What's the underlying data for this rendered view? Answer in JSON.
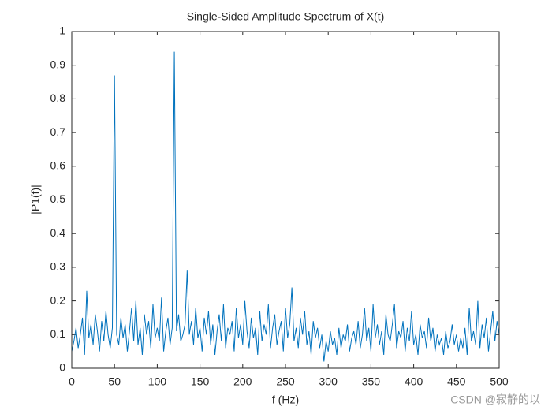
{
  "chart_data": {
    "type": "line",
    "title": "Single-Sided Amplitude Spectrum of X(t)",
    "x_label": "f (Hz)",
    "y_label": "|P1(f)|",
    "watermark": "CSDN @寂静的以",
    "xlim": [
      0,
      500
    ],
    "xticks": [
      0,
      50,
      100,
      150,
      200,
      250,
      300,
      350,
      400,
      450,
      500
    ],
    "ylim": [
      0,
      1
    ],
    "yticks": [
      0,
      0.1,
      0.2,
      0.3,
      0.4,
      0.5,
      0.6,
      0.7,
      0.8,
      0.9,
      1
    ],
    "x": [
      0,
      2.5,
      5,
      7.5,
      10,
      12.5,
      15,
      17.5,
      20,
      22.5,
      25,
      27.5,
      30,
      32.5,
      35,
      37.5,
      40,
      42.5,
      45,
      47.5,
      50,
      52.5,
      55,
      57.5,
      60,
      62.5,
      65,
      67.5,
      70,
      72.5,
      75,
      77.5,
      80,
      82.5,
      85,
      87.5,
      90,
      92.5,
      95,
      97.5,
      100,
      102.5,
      105,
      107.5,
      110,
      112.5,
      115,
      117.5,
      120,
      122.5,
      125,
      127.5,
      130,
      132.5,
      135,
      137.5,
      140,
      142.5,
      145,
      147.5,
      150,
      152.5,
      155,
      157.5,
      160,
      162.5,
      165,
      167.5,
      170,
      172.5,
      175,
      177.5,
      180,
      182.5,
      185,
      187.5,
      190,
      192.5,
      195,
      197.5,
      200,
      202.5,
      205,
      207.5,
      210,
      212.5,
      215,
      217.5,
      220,
      222.5,
      225,
      227.5,
      230,
      232.5,
      235,
      237.5,
      240,
      242.5,
      245,
      247.5,
      250,
      252.5,
      255,
      257.5,
      260,
      262.5,
      265,
      267.5,
      270,
      272.5,
      275,
      277.5,
      280,
      282.5,
      285,
      287.5,
      290,
      292.5,
      295,
      297.5,
      300,
      302.5,
      305,
      307.5,
      310,
      312.5,
      315,
      317.5,
      320,
      322.5,
      325,
      327.5,
      330,
      332.5,
      335,
      337.5,
      340,
      342.5,
      345,
      347.5,
      350,
      352.5,
      355,
      357.5,
      360,
      362.5,
      365,
      367.5,
      370,
      372.5,
      375,
      377.5,
      380,
      382.5,
      385,
      387.5,
      390,
      392.5,
      395,
      397.5,
      400,
      402.5,
      405,
      407.5,
      410,
      412.5,
      415,
      417.5,
      420,
      422.5,
      425,
      427.5,
      430,
      432.5,
      435,
      437.5,
      440,
      442.5,
      445,
      447.5,
      450,
      452.5,
      455,
      457.5,
      460,
      462.5,
      465,
      467.5,
      470,
      472.5,
      475,
      477.5,
      480,
      482.5,
      485,
      487.5,
      490,
      492.5,
      495,
      497.5,
      500
    ],
    "series": [
      {
        "color": "#0072bd",
        "values": [
          0.05,
          0.08,
          0.12,
          0.06,
          0.1,
          0.15,
          0.04,
          0.23,
          0.09,
          0.13,
          0.07,
          0.16,
          0.11,
          0.05,
          0.14,
          0.08,
          0.17,
          0.1,
          0.06,
          0.12,
          0.87,
          0.1,
          0.07,
          0.15,
          0.09,
          0.13,
          0.05,
          0.11,
          0.18,
          0.08,
          0.2,
          0.07,
          0.12,
          0.04,
          0.16,
          0.1,
          0.14,
          0.06,
          0.19,
          0.09,
          0.12,
          0.08,
          0.21,
          0.05,
          0.11,
          0.15,
          0.07,
          0.12,
          0.94,
          0.11,
          0.16,
          0.08,
          0.1,
          0.13,
          0.29,
          0.1,
          0.14,
          0.07,
          0.18,
          0.09,
          0.12,
          0.05,
          0.15,
          0.1,
          0.17,
          0.07,
          0.13,
          0.04,
          0.11,
          0.16,
          0.08,
          0.19,
          0.06,
          0.12,
          0.1,
          0.14,
          0.05,
          0.18,
          0.09,
          0.13,
          0.07,
          0.2,
          0.11,
          0.06,
          0.15,
          0.09,
          0.12,
          0.04,
          0.17,
          0.08,
          0.13,
          0.1,
          0.19,
          0.06,
          0.12,
          0.16,
          0.07,
          0.11,
          0.14,
          0.05,
          0.18,
          0.09,
          0.13,
          0.24,
          0.08,
          0.12,
          0.06,
          0.15,
          0.1,
          0.17,
          0.07,
          0.11,
          0.04,
          0.14,
          0.09,
          0.12,
          0.06,
          0.1,
          0.02,
          0.08,
          0.05,
          0.11,
          0.07,
          0.09,
          0.04,
          0.12,
          0.06,
          0.1,
          0.08,
          0.13,
          0.05,
          0.09,
          0.11,
          0.07,
          0.14,
          0.06,
          0.1,
          0.18,
          0.08,
          0.12,
          0.05,
          0.19,
          0.09,
          0.13,
          0.07,
          0.11,
          0.04,
          0.16,
          0.1,
          0.08,
          0.13,
          0.19,
          0.06,
          0.11,
          0.09,
          0.14,
          0.05,
          0.12,
          0.08,
          0.17,
          0.07,
          0.1,
          0.04,
          0.13,
          0.09,
          0.11,
          0.06,
          0.15,
          0.08,
          0.12,
          0.05,
          0.1,
          0.07,
          0.09,
          0.04,
          0.11,
          0.06,
          0.08,
          0.13,
          0.07,
          0.1,
          0.05,
          0.09,
          0.06,
          0.12,
          0.04,
          0.18,
          0.08,
          0.11,
          0.07,
          0.2,
          0.06,
          0.13,
          0.09,
          0.15,
          0.05,
          0.11,
          0.17,
          0.08,
          0.14,
          0.1
        ]
      }
    ]
  }
}
